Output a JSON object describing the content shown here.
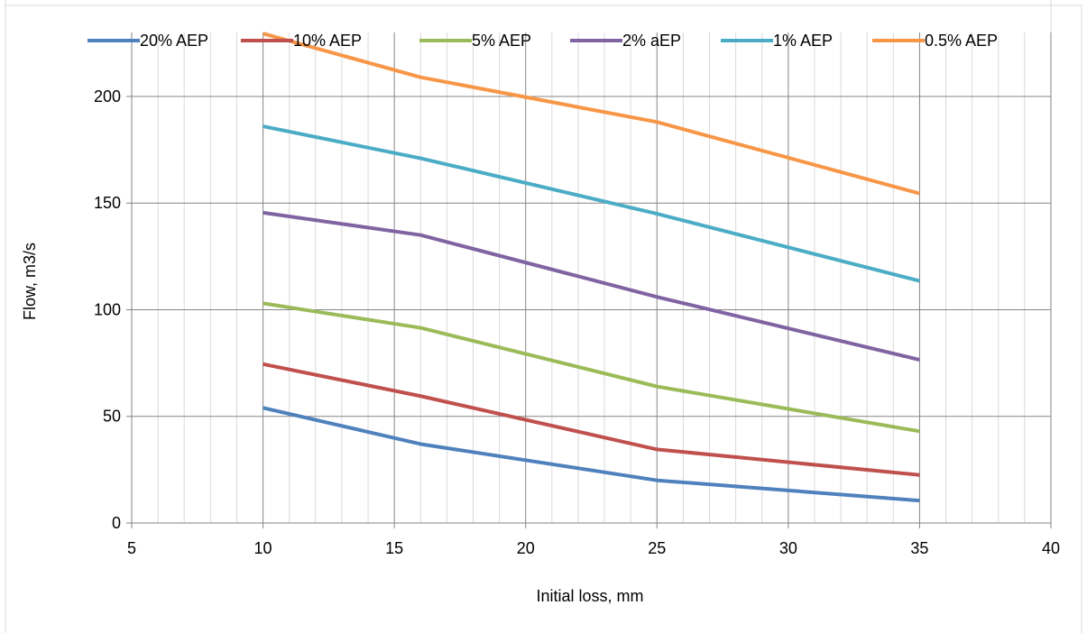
{
  "chart_data": {
    "type": "line",
    "xlabel": "Initial loss, mm",
    "ylabel": "Flow, m3/s",
    "xlim": [
      5,
      40
    ],
    "ylim": [
      0,
      230
    ],
    "xticks": [
      5,
      10,
      15,
      20,
      25,
      30,
      35,
      40
    ],
    "yticks": [
      0,
      50,
      100,
      150,
      200
    ],
    "grid": "major and minor vertical, major horizontal",
    "legend_position": "top",
    "series": [
      {
        "name": "20% AEP",
        "color": "#4F81BD",
        "x": [
          10,
          16,
          25,
          35
        ],
        "values": [
          54,
          37,
          20,
          10.5
        ]
      },
      {
        "name": "10% AEP",
        "color": "#C0504D",
        "x": [
          10,
          16,
          25,
          35
        ],
        "values": [
          74.5,
          59.5,
          34.5,
          22.5
        ]
      },
      {
        "name": "5% AEP",
        "color": "#9BBB59",
        "x": [
          10,
          16,
          25,
          35
        ],
        "values": [
          103,
          91.5,
          64,
          43
        ]
      },
      {
        "name": "2% aEP",
        "color": "#8064A2",
        "x": [
          10,
          16,
          25,
          35
        ],
        "values": [
          145.5,
          135,
          106,
          76.5
        ]
      },
      {
        "name": "1% AEP",
        "color": "#4BACC6",
        "x": [
          10,
          16,
          25,
          35
        ],
        "values": [
          186,
          171,
          145,
          113.5
        ]
      },
      {
        "name": "0.5% AEP",
        "color": "#F79646",
        "x": [
          10,
          16,
          25,
          35
        ],
        "values": [
          229.5,
          209,
          188,
          154.5
        ]
      }
    ]
  }
}
